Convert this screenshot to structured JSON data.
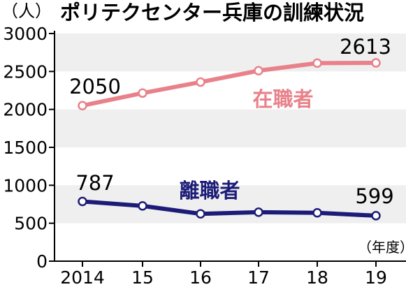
{
  "chart_data": {
    "type": "line",
    "title": "ポリテクセンター兵庫の訓練状況",
    "unit_label": "（人）",
    "x_unit_label": "（年度）",
    "categories": [
      "2014",
      "15",
      "16",
      "17",
      "18",
      "19"
    ],
    "ylim": [
      0,
      3000
    ],
    "yticks": [
      "0",
      "500",
      "1000",
      "1500",
      "2000",
      "2500",
      "3000"
    ],
    "grid": "alternating-bands",
    "series": [
      {
        "name": "在職者",
        "color": "#e8818a",
        "values": [
          2050,
          2215,
          2360,
          2510,
          2610,
          2613
        ],
        "first_label": "2050",
        "last_label": "2613"
      },
      {
        "name": "離職者",
        "color": "#1c1c78",
        "values": [
          787,
          728,
          624,
          645,
          637,
          599
        ],
        "first_label": "787",
        "last_label": "599"
      }
    ]
  }
}
